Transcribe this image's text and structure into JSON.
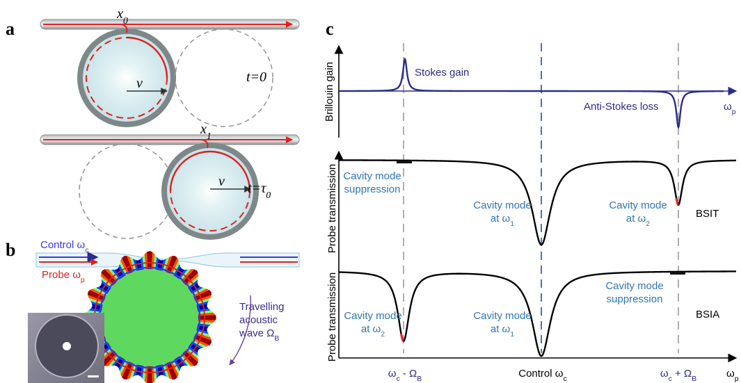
{
  "panel_a": {
    "label": "a",
    "state_0": {
      "entry_point": [
        [
          {
            "text": "x",
            "sub": "0"
          }
        ]
      ],
      "velocity": "v",
      "time": "t=0"
    },
    "state_1": {
      "entry_point": [
        [
          {
            "text": "x",
            "sub": "1"
          }
        ]
      ],
      "velocity": "v",
      "time": [
        [
          {
            "text": "t=τ",
            "sub": "0"
          }
        ]
      ]
    }
  },
  "panel_b": {
    "label": "b",
    "control": [
      [
        {
          "text": "Control ω",
          "sub": "c"
        }
      ]
    ],
    "probe": [
      [
        {
          "text": "Probe ω",
          "sub": "p"
        }
      ]
    ],
    "wave": [
      [
        {
          "text": "Travelling"
        }
      ],
      [
        {
          "text": "acoustic"
        }
      ],
      [
        {
          "text": "wave Ω",
          "sub": "B"
        }
      ]
    ]
  },
  "panel_c": {
    "label": "c",
    "gain_axis": "Brillouin gain",
    "stokes": "Stokes gain",
    "anti_stokes": "Anti-Stokes loss",
    "freq_top": [
      [
        {
          "text": "ω",
          "sub": "p"
        }
      ]
    ],
    "transmission_axis_1": "Probe transmission",
    "transmission_axis_2": "Probe transmission",
    "bsit": {
      "name": "BSIT",
      "suppression": [
        [
          {
            "text": "Cavity mode"
          }
        ],
        [
          {
            "text": "suppression"
          }
        ]
      ],
      "mode_1": [
        [
          {
            "text": "Cavity mode"
          }
        ],
        [
          {
            "text": "at ω",
            "sub": "1"
          }
        ]
      ],
      "mode_2": [
        [
          {
            "text": "Cavity mode"
          }
        ],
        [
          {
            "text": "at ω",
            "sub": "2"
          }
        ]
      ]
    },
    "bsia": {
      "name": "BSIA",
      "suppression": [
        [
          {
            "text": "Cavity mode"
          }
        ],
        [
          {
            "text": "suppression"
          }
        ]
      ],
      "mode_1": [
        [
          {
            "text": "Cavity mode"
          }
        ],
        [
          {
            "text": "at ω",
            "sub": "1"
          }
        ]
      ],
      "mode_2": [
        [
          {
            "text": "Cavity mode"
          }
        ],
        [
          {
            "text": "at ω",
            "sub": "2"
          }
        ]
      ]
    },
    "x_labels": {
      "lower": [
        [
          {
            "text": "ω",
            "sub": "c"
          },
          {
            "text": " - Ω",
            "sub": "B"
          }
        ]
      ],
      "control": [
        [
          {
            "text": "Control ω",
            "sub": "c"
          }
        ]
      ],
      "upper": [
        [
          {
            "text": "ω",
            "sub": "c"
          },
          {
            "text": " + Ω",
            "sub": "B"
          }
        ]
      ],
      "axis": [
        [
          {
            "text": "ω",
            "sub": "p"
          }
        ]
      ]
    }
  }
}
